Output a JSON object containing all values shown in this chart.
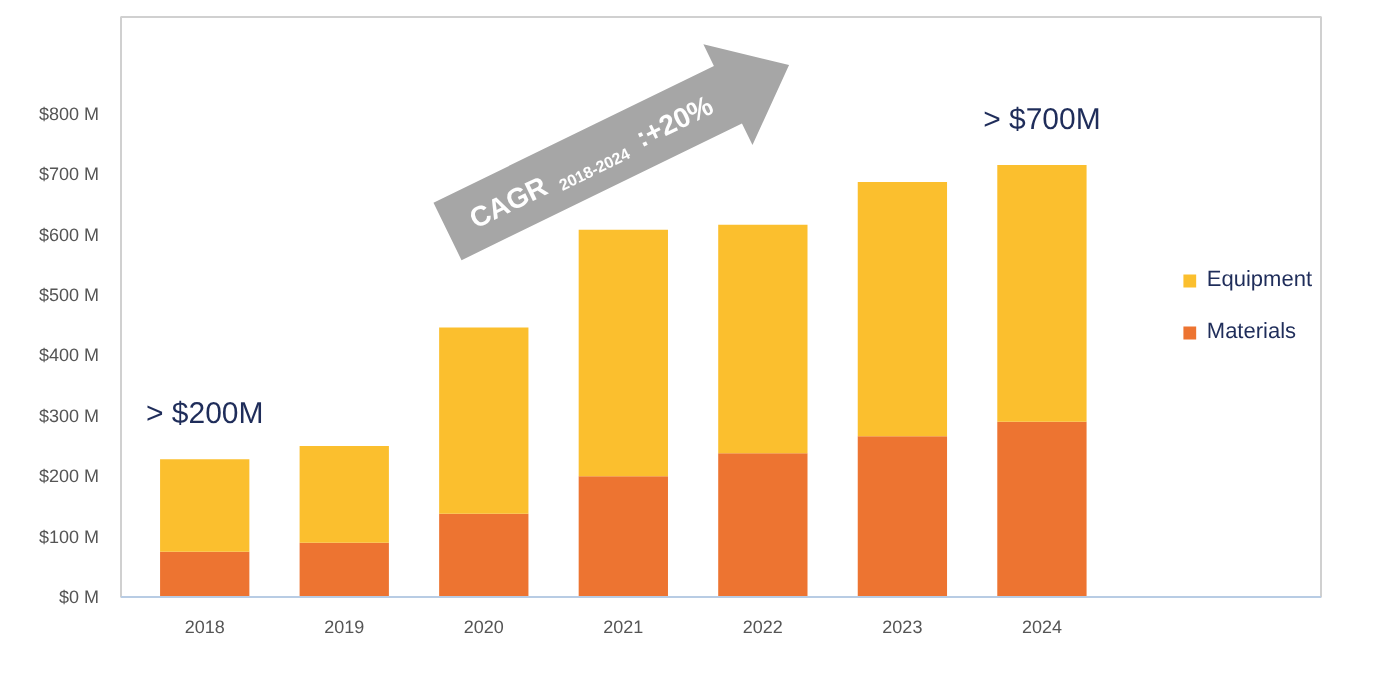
{
  "chart_data": {
    "type": "bar",
    "stacked": true,
    "categories": [
      "2018",
      "2019",
      "2020",
      "2021",
      "2022",
      "2023",
      "2024"
    ],
    "series": [
      {
        "name": "Materials",
        "color": "#ed7431",
        "values": [
          75,
          90,
          138,
          200,
          238,
          266,
          290
        ]
      },
      {
        "name": "Equipment",
        "color": "#fbbf2e",
        "values": [
          153,
          160,
          308,
          408,
          378,
          421,
          425
        ]
      }
    ],
    "ylim": [
      0,
      960
    ],
    "yticks": [
      {
        "value": 0,
        "label": "$0 M"
      },
      {
        "value": 100,
        "label": "$100 M"
      },
      {
        "value": 200,
        "label": "$200 M"
      },
      {
        "value": 300,
        "label": "$300 M"
      },
      {
        "value": 400,
        "label": "$400 M"
      },
      {
        "value": 500,
        "label": "$500 M"
      },
      {
        "value": 600,
        "label": "$600 M"
      },
      {
        "value": 700,
        "label": "$700 M"
      },
      {
        "value": 800,
        "label": "$800 M"
      }
    ],
    "annotations": [
      {
        "text": "> $200M",
        "x": "2018",
        "y": 228
      },
      {
        "text": "> $700M",
        "x": "2024",
        "y": 715
      },
      "CAGR $_{2018-2024}$ :+20%"
    ],
    "grid": false,
    "legend": "right"
  }
}
